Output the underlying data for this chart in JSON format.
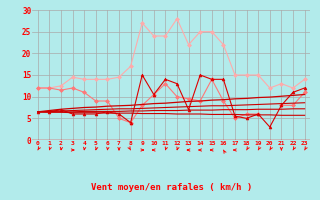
{
  "bg_color": "#b2ebeb",
  "grid_color": "#aaaaaa",
  "xlabel": "Vent moyen/en rafales ( km/h )",
  "x_ticks": [
    0,
    1,
    2,
    3,
    4,
    5,
    6,
    7,
    8,
    9,
    10,
    11,
    12,
    13,
    14,
    15,
    16,
    17,
    18,
    19,
    20,
    21,
    22,
    23
  ],
  "ylim": [
    0,
    30
  ],
  "yticks": [
    0,
    5,
    10,
    15,
    20,
    25,
    30
  ],
  "lines": [
    {
      "color": "#ffaaaa",
      "marker": "D",
      "markersize": 2,
      "linewidth": 0.8,
      "data": [
        12,
        12,
        12.5,
        14.5,
        14,
        14,
        14,
        14.5,
        17,
        27,
        24,
        24,
        28,
        22,
        25,
        25,
        22,
        15,
        15,
        15,
        12,
        13,
        12,
        14
      ]
    },
    {
      "color": "#ff7777",
      "marker": "D",
      "markersize": 2,
      "linewidth": 0.8,
      "data": [
        12,
        12,
        11.5,
        12,
        11,
        9,
        9,
        5,
        4,
        8,
        10.5,
        13,
        10,
        9.5,
        9,
        14,
        9,
        5,
        6,
        6,
        null,
        8,
        8,
        11
      ]
    },
    {
      "color": "#dd0000",
      "marker": "^",
      "markersize": 2,
      "linewidth": 0.8,
      "data": [
        6.5,
        6.5,
        7,
        6,
        6,
        6,
        6.5,
        6,
        4,
        15,
        10.5,
        14,
        13,
        7,
        15,
        14,
        14,
        5.5,
        5,
        6,
        3,
        8,
        11,
        12
      ]
    },
    {
      "color": "#cc0000",
      "marker": null,
      "linewidth": 0.9,
      "data": [
        6.5,
        6.8,
        7.1,
        7.3,
        7.5,
        7.6,
        7.8,
        7.9,
        8.0,
        8.2,
        8.4,
        8.5,
        8.7,
        8.9,
        9.0,
        9.2,
        9.3,
        9.5,
        9.6,
        9.8,
        9.9,
        10.1,
        10.3,
        10.5
      ]
    },
    {
      "color": "#cc0000",
      "marker": null,
      "linewidth": 0.8,
      "data": [
        6.5,
        6.6,
        6.7,
        6.8,
        6.9,
        7.0,
        7.1,
        7.2,
        7.2,
        7.3,
        7.4,
        7.5,
        7.6,
        7.7,
        7.8,
        7.9,
        7.9,
        8.0,
        8.1,
        8.2,
        8.3,
        8.4,
        8.5,
        8.6
      ]
    },
    {
      "color": "#cc0000",
      "marker": null,
      "linewidth": 0.8,
      "data": [
        6.5,
        6.5,
        6.5,
        6.5,
        6.6,
        6.6,
        6.6,
        6.6,
        6.7,
        6.7,
        6.8,
        6.8,
        6.8,
        6.9,
        6.9,
        6.9,
        7.0,
        7.0,
        7.0,
        7.1,
        7.1,
        7.1,
        7.2,
        7.2
      ]
    },
    {
      "color": "#cc0000",
      "marker": null,
      "linewidth": 0.8,
      "data": [
        6.5,
        6.4,
        6.4,
        6.3,
        6.3,
        6.3,
        6.2,
        6.2,
        6.2,
        6.1,
        6.1,
        6.1,
        6.0,
        6.0,
        6.0,
        5.9,
        5.9,
        5.9,
        5.8,
        5.8,
        5.8,
        5.7,
        5.7,
        5.7
      ]
    }
  ],
  "arrow_angles_deg": [
    225,
    210,
    195,
    90,
    195,
    210,
    195,
    180,
    135,
    90,
    270,
    210,
    210,
    270,
    270,
    270,
    315,
    270,
    225,
    225,
    225,
    180,
    225,
    225
  ]
}
